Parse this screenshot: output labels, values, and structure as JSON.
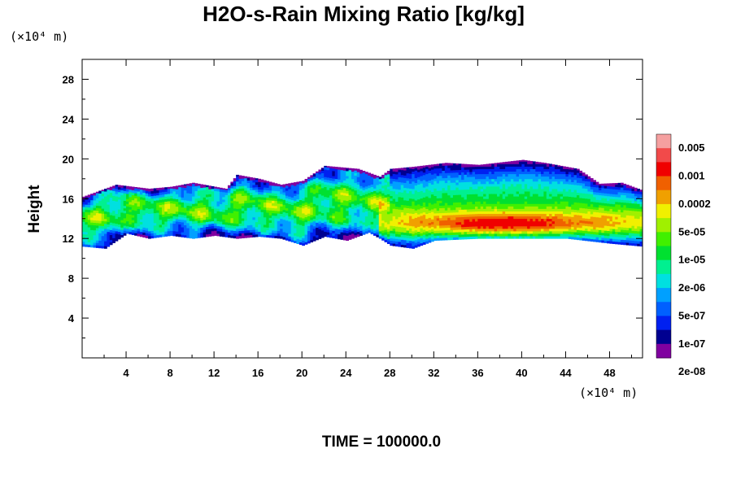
{
  "chart_data": {
    "type": "heatmap",
    "title": "H2O-s-Rain Mixing Ratio [kg/kg]",
    "ylabel": "Height",
    "x_unit": "(×10⁴ m)",
    "y_unit": "(×10⁴ m)",
    "footer": "TIME = 100000.0",
    "xlim": [
      0,
      51
    ],
    "ylim": [
      0,
      30
    ],
    "xticks": [
      4,
      8,
      12,
      16,
      20,
      24,
      28,
      32,
      36,
      40,
      44,
      48
    ],
    "yticks": [
      4,
      8,
      12,
      16,
      20,
      24,
      28
    ],
    "grid": false,
    "colorbar": {
      "colors": [
        "#f5a0a0",
        "#f24a4a",
        "#f00000",
        "#f06000",
        "#f0a000",
        "#f0f000",
        "#a0f000",
        "#40f000",
        "#00e030",
        "#00f090",
        "#00e0e0",
        "#00a0ff",
        "#0060ff",
        "#0020f0",
        "#000090",
        "#8000a0"
      ],
      "labels": [
        "0.005",
        "0.001",
        "0.0002",
        "5e-05",
        "1e-05",
        "2e-06",
        "5e-07",
        "1e-07",
        "2e-08"
      ]
    },
    "layer": {
      "x_start": 0,
      "x_end": 51,
      "bottom": [
        {
          "x": 0,
          "y": 11.2
        },
        {
          "x": 2,
          "y": 11.0
        },
        {
          "x": 4,
          "y": 12.5
        },
        {
          "x": 6,
          "y": 12.0
        },
        {
          "x": 8,
          "y": 12.3
        },
        {
          "x": 10,
          "y": 12.0
        },
        {
          "x": 12,
          "y": 12.3
        },
        {
          "x": 14,
          "y": 12.0
        },
        {
          "x": 16,
          "y": 12.2
        },
        {
          "x": 18,
          "y": 12.0
        },
        {
          "x": 20,
          "y": 11.3
        },
        {
          "x": 22,
          "y": 12.2
        },
        {
          "x": 24,
          "y": 11.8
        },
        {
          "x": 26,
          "y": 12.6
        },
        {
          "x": 27,
          "y": 12.0
        },
        {
          "x": 28,
          "y": 11.3
        },
        {
          "x": 30,
          "y": 11.0
        },
        {
          "x": 32,
          "y": 11.8
        },
        {
          "x": 36,
          "y": 12.0
        },
        {
          "x": 40,
          "y": 12.0
        },
        {
          "x": 44,
          "y": 12.0
        },
        {
          "x": 48,
          "y": 11.5
        },
        {
          "x": 51,
          "y": 11.2
        }
      ],
      "top": [
        {
          "x": 0,
          "y": 16.2
        },
        {
          "x": 2,
          "y": 17.0
        },
        {
          "x": 3,
          "y": 17.4
        },
        {
          "x": 6,
          "y": 17.0
        },
        {
          "x": 8,
          "y": 17.2
        },
        {
          "x": 10,
          "y": 17.6
        },
        {
          "x": 13,
          "y": 17.0
        },
        {
          "x": 14,
          "y": 18.4
        },
        {
          "x": 16,
          "y": 18.0
        },
        {
          "x": 18,
          "y": 17.4
        },
        {
          "x": 20,
          "y": 17.8
        },
        {
          "x": 22,
          "y": 19.3
        },
        {
          "x": 25,
          "y": 19.0
        },
        {
          "x": 27,
          "y": 18.2
        },
        {
          "x": 28,
          "y": 19.0
        },
        {
          "x": 30,
          "y": 19.2
        },
        {
          "x": 33,
          "y": 19.6
        },
        {
          "x": 36,
          "y": 19.4
        },
        {
          "x": 40,
          "y": 19.9
        },
        {
          "x": 42,
          "y": 19.6
        },
        {
          "x": 45,
          "y": 19.0
        },
        {
          "x": 47,
          "y": 17.5
        },
        {
          "x": 49,
          "y": 17.6
        },
        {
          "x": 51,
          "y": 16.8
        }
      ]
    },
    "core": {
      "center_x": 38.5,
      "center_y": 13.2,
      "half_width_x": 12.0,
      "half_height_y": 1.6,
      "peak_value": 0.002
    }
  }
}
